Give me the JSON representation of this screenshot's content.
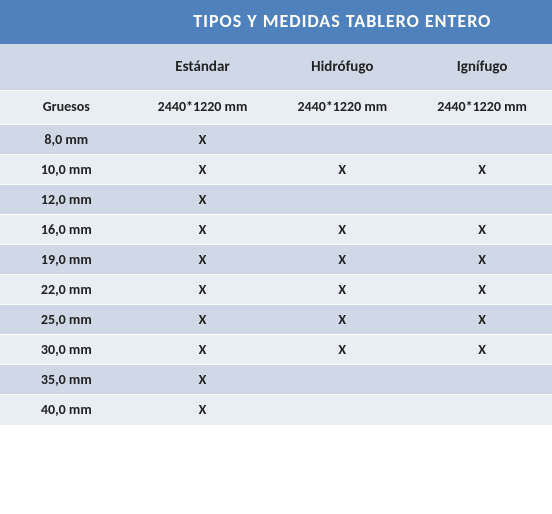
{
  "table": {
    "title": "TIPOS  Y  MEDIDAS   TABLERO ENTERO",
    "headers": [
      "Estándar",
      "Hidrófugo",
      "Ignífugo"
    ],
    "row_label_header": "Gruesos",
    "dimension_label": "2440*1220 mm",
    "columns": [
      "col0",
      "col1",
      "col2",
      "col3"
    ],
    "rows": [
      {
        "label": "8,0 mm",
        "vals": [
          "X",
          "",
          ""
        ]
      },
      {
        "label": "10,0 mm",
        "vals": [
          "X",
          "X",
          "X"
        ]
      },
      {
        "label": "12,0 mm",
        "vals": [
          "X",
          "",
          ""
        ]
      },
      {
        "label": "16,0 mm",
        "vals": [
          "X",
          "X",
          "X"
        ]
      },
      {
        "label": "19,0 mm",
        "vals": [
          "X",
          "X",
          "X"
        ]
      },
      {
        "label": "22,0 mm",
        "vals": [
          "X",
          "X",
          "X"
        ]
      },
      {
        "label": "25,0 mm",
        "vals": [
          "X",
          "X",
          "X"
        ]
      },
      {
        "label": "30,0 mm",
        "vals": [
          "X",
          "X",
          "X"
        ]
      },
      {
        "label": "35,0 mm",
        "vals": [
          "X",
          "",
          ""
        ]
      },
      {
        "label": "40,0 mm",
        "vals": [
          "X",
          "",
          ""
        ]
      }
    ],
    "style": {
      "header_bg": "#4f81bd",
      "header_fg": "#ffffff",
      "band_even": "#d0d8e8",
      "band_odd": "#e9edf4",
      "border_color": "#ffffff",
      "text_color": "#222222",
      "title_fontsize": 18,
      "subhead_fontsize": 15,
      "body_fontsize": 14
    }
  }
}
